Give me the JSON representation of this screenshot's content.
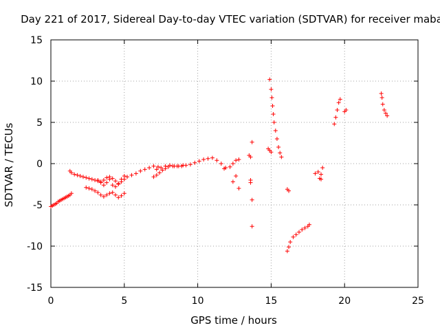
{
  "chart_data": {
    "type": "scatter",
    "title": "Day 221 of 2017, Sidereal Day-to-day VTEC variation (SDTVAR) for receiver maba",
    "xlabel": "GPS time / hours",
    "ylabel": "SDTVAR / TECUs",
    "xlim": [
      0,
      25
    ],
    "ylim": [
      -15,
      15
    ],
    "xticks": [
      0,
      5,
      10,
      15,
      20,
      25
    ],
    "yticks": [
      -15,
      -10,
      -5,
      0,
      5,
      10,
      15
    ],
    "xtick_labels": [
      "0",
      "5",
      "10",
      "15",
      "20",
      "25"
    ],
    "ytick_labels": [
      "-15",
      "-10",
      "-5",
      "0",
      "5",
      "10",
      "15"
    ],
    "grid": true,
    "marker": "+",
    "color": "#ff0000",
    "series": [
      {
        "name": "seg1",
        "x": [
          0.0,
          0.1,
          0.2,
          0.3,
          0.4,
          0.5,
          0.6,
          0.7,
          0.8,
          0.9,
          1.0,
          1.1,
          1.2,
          1.3,
          1.4
        ],
        "y": [
          -5.2,
          -5.1,
          -5.0,
          -4.9,
          -4.8,
          -4.6,
          -4.5,
          -4.4,
          -4.3,
          -4.2,
          -4.1,
          -4.0,
          -3.9,
          -3.8,
          -3.6
        ]
      },
      {
        "name": "seg2",
        "x": [
          1.3,
          1.4,
          1.6,
          1.8,
          2.0,
          2.2,
          2.4,
          2.6,
          2.8,
          3.0,
          3.2,
          3.4,
          3.6,
          3.8,
          4.0,
          4.2,
          4.4,
          4.6,
          4.8,
          5.0
        ],
        "y": [
          -0.9,
          -1.1,
          -1.3,
          -1.4,
          -1.5,
          -1.6,
          -1.7,
          -1.8,
          -1.9,
          -2.0,
          -2.1,
          -2.2,
          -2.0,
          -1.7,
          -1.6,
          -1.8,
          -2.1,
          -2.4,
          -1.9,
          -1.5
        ]
      },
      {
        "name": "seg3",
        "x": [
          2.4,
          2.6,
          2.8,
          3.0,
          3.2,
          3.4,
          3.6,
          3.8,
          4.0,
          4.2,
          4.4,
          4.6,
          4.8,
          5.0
        ],
        "y": [
          -2.9,
          -3.0,
          -3.1,
          -3.3,
          -3.5,
          -3.8,
          -4.0,
          -3.8,
          -3.6,
          -3.5,
          -3.8,
          -4.1,
          -3.9,
          -3.6
        ]
      },
      {
        "name": "seg4",
        "x": [
          3.2,
          3.4,
          3.6,
          3.8,
          4.0,
          4.2,
          4.4,
          4.6,
          4.8,
          5.0,
          5.2,
          5.5,
          5.8,
          6.1,
          6.4,
          6.7,
          7.0,
          7.3
        ],
        "y": [
          -2.0,
          -2.3,
          -2.6,
          -2.3,
          -1.9,
          -2.6,
          -2.8,
          -2.5,
          -2.2,
          -1.9,
          -1.6,
          -1.4,
          -1.2,
          -0.9,
          -0.7,
          -0.5,
          -0.3,
          -0.4
        ]
      },
      {
        "name": "seg5",
        "x": [
          7.0,
          7.2,
          7.4,
          7.6,
          7.8,
          8.0,
          8.3,
          8.6,
          8.9,
          9.2,
          9.5,
          9.8,
          10.1,
          10.4,
          10.7,
          11.0,
          11.3,
          11.6,
          11.9
        ],
        "y": [
          -1.6,
          -1.4,
          -1.1,
          -0.8,
          -0.6,
          -0.4,
          -0.3,
          -0.3,
          -0.3,
          -0.2,
          -0.1,
          0.1,
          0.3,
          0.5,
          0.6,
          0.7,
          0.4,
          0.0,
          -0.5
        ]
      },
      {
        "name": "seg6",
        "x": [
          7.2,
          7.5,
          7.8,
          8.1,
          8.4,
          8.7,
          9.0
        ],
        "y": [
          -0.7,
          -0.5,
          -0.3,
          -0.2,
          -0.3,
          -0.3,
          -0.2
        ]
      },
      {
        "name": "seg7",
        "x": [
          11.8,
          12.2,
          12.4,
          12.6,
          12.8,
          12.4,
          12.6,
          12.8
        ],
        "y": [
          -0.6,
          -0.4,
          0.0,
          0.4,
          0.5,
          -2.2,
          -1.5,
          -3.0
        ]
      },
      {
        "name": "seg8",
        "x": [
          13.5,
          13.6,
          13.7,
          13.7,
          13.6,
          13.7,
          13.6
        ],
        "y": [
          1.0,
          0.8,
          2.6,
          -4.4,
          -2.0,
          -7.6,
          -2.3
        ]
      },
      {
        "name": "seg9",
        "x": [
          14.9,
          15.0,
          15.05,
          15.1,
          15.15,
          15.2,
          15.3,
          15.4,
          15.5,
          15.6,
          15.7
        ],
        "y": [
          10.2,
          9.0,
          8.0,
          7.0,
          6.0,
          5.0,
          4.0,
          3.0,
          2.0,
          1.3,
          0.8
        ]
      },
      {
        "name": "seg10",
        "x": [
          14.8,
          14.9,
          15.0
        ],
        "y": [
          1.8,
          1.6,
          1.4
        ]
      },
      {
        "name": "seg11",
        "x": [
          16.1,
          16.2,
          16.3,
          16.5,
          16.7,
          16.9,
          17.1,
          17.3,
          17.5,
          17.6
        ],
        "y": [
          -10.6,
          -10.1,
          -9.5,
          -8.9,
          -8.6,
          -8.3,
          -8.0,
          -7.8,
          -7.6,
          -7.4
        ]
      },
      {
        "name": "seg12",
        "x": [
          16.1,
          16.2
        ],
        "y": [
          -3.1,
          -3.3
        ]
      },
      {
        "name": "seg13",
        "x": [
          18.0,
          18.2,
          18.3,
          18.4,
          18.5,
          18.4
        ],
        "y": [
          -1.2,
          -1.0,
          -1.8,
          -1.3,
          -0.5,
          -1.9
        ]
      },
      {
        "name": "seg14",
        "x": [
          19.3,
          19.4,
          19.5,
          19.6,
          19.7,
          20.0,
          20.1
        ],
        "y": [
          4.8,
          5.6,
          6.5,
          7.4,
          7.8,
          6.3,
          6.5
        ]
      },
      {
        "name": "seg15",
        "x": [
          22.5,
          22.55,
          22.6,
          22.7,
          22.8,
          22.9
        ],
        "y": [
          8.5,
          8.0,
          7.2,
          6.5,
          6.1,
          5.8
        ]
      }
    ]
  }
}
